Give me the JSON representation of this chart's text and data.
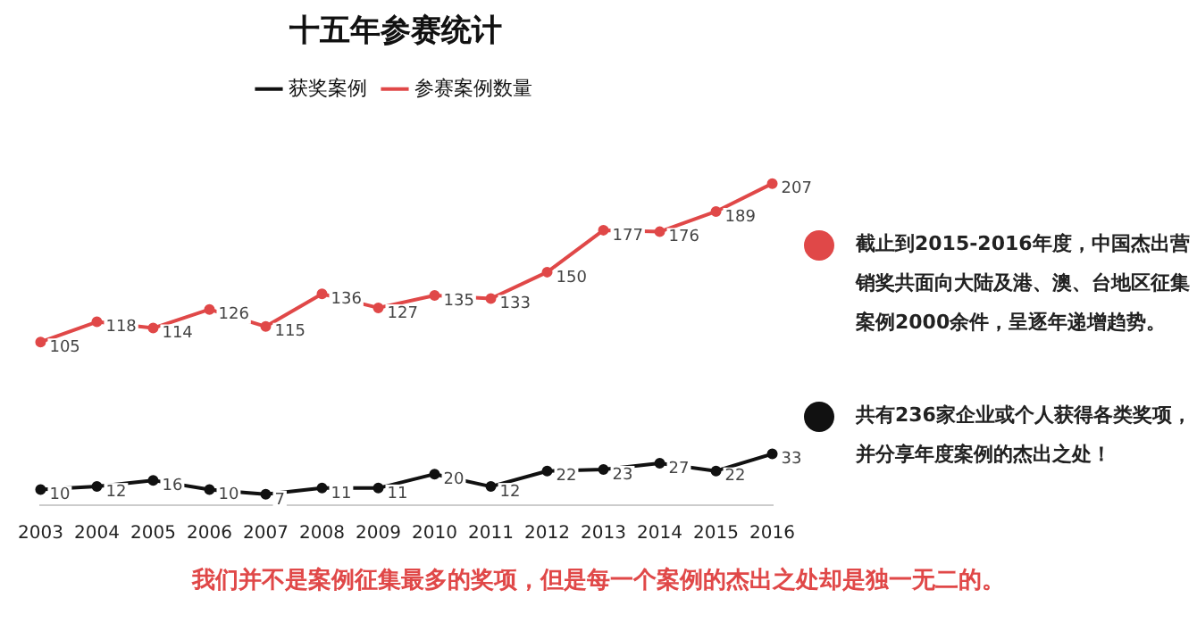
{
  "chart_data": {
    "type": "line",
    "title": "十五年参赛统计",
    "categories": [
      "2003",
      "2004",
      "2005",
      "2006",
      "2007",
      "2008",
      "2009",
      "2010",
      "2011",
      "2012",
      "2013",
      "2014",
      "2015",
      "2016"
    ],
    "series": [
      {
        "name": "获奖案例",
        "color": "#111111",
        "values": [
          10,
          12,
          16,
          10,
          7,
          11,
          11,
          20,
          12,
          22,
          23,
          27,
          22,
          33
        ]
      },
      {
        "name": "参赛案例数量",
        "color": "#e04848",
        "values": [
          105,
          118,
          114,
          126,
          115,
          136,
          127,
          135,
          133,
          150,
          177,
          176,
          189,
          207
        ]
      }
    ],
    "data_labels": true,
    "grid": false,
    "legend": "top",
    "marker": "circle",
    "line_style": "solid",
    "tick_labels": "x",
    "annotations": [
      "截止到2015-2016年度，中国杰出营销奖共面向大陆及港、澳、台地区征集案例2000余件，呈逐年递增趋势。",
      "共有236家企业或个人获得各类奖项，并分享年度案例的杰出之处！",
      "我们并不是案例征集最多的奖项，但是每一个案例的杰出之处却是独一无二的。"
    ]
  }
}
